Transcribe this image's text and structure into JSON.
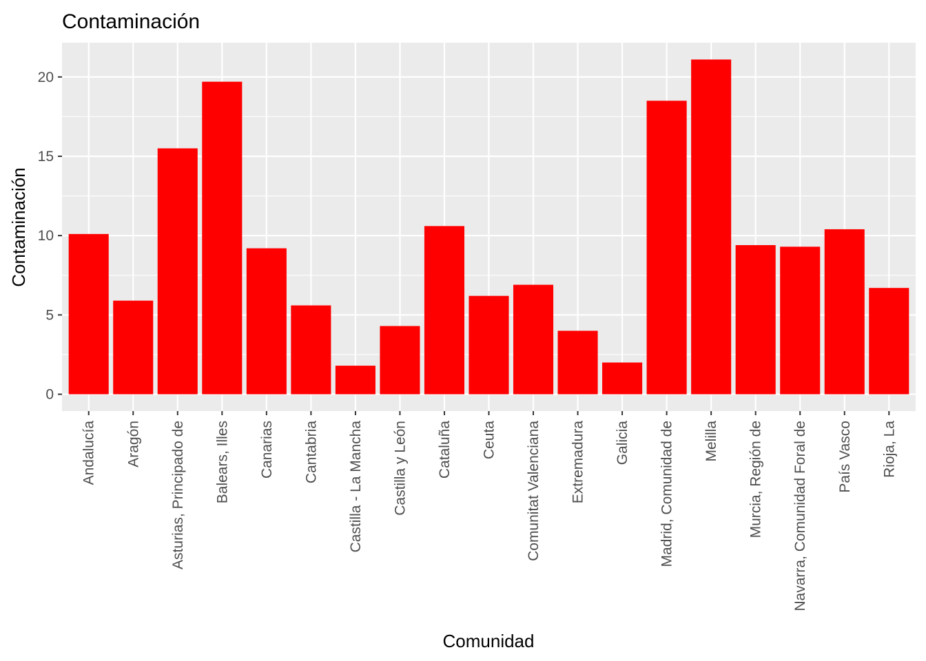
{
  "chart_data": {
    "type": "bar",
    "title": "Contaminación",
    "xlabel": "Comunidad",
    "ylabel": "Contaminación",
    "categories": [
      "Andalucía",
      "Aragón",
      "Asturias, Principado de",
      "Balears, Illes",
      "Canarias",
      "Cantabria",
      "Castilla - La Mancha",
      "Castilla y León",
      "Cataluña",
      "Ceuta",
      "Comunitat Valenciana",
      "Extremadura",
      "Galicia",
      "Madrid, Comunidad de",
      "Melilla",
      "Murcia, Región de",
      "Navarra, Comunidad Foral de",
      "País Vasco",
      "Rioja, La"
    ],
    "values": [
      10.1,
      5.9,
      15.5,
      19.7,
      9.2,
      5.6,
      1.8,
      4.3,
      10.6,
      6.2,
      6.9,
      4.0,
      2.0,
      18.5,
      21.1,
      9.4,
      9.3,
      10.4,
      6.7
    ],
    "yticks": [
      0,
      5,
      10,
      15,
      20
    ],
    "ylim": [
      -1.06,
      22.16
    ],
    "grid": true,
    "colors": {
      "bar": "#FF0000",
      "panel": "#EBEBEB",
      "grid": "#FFFFFF"
    }
  }
}
